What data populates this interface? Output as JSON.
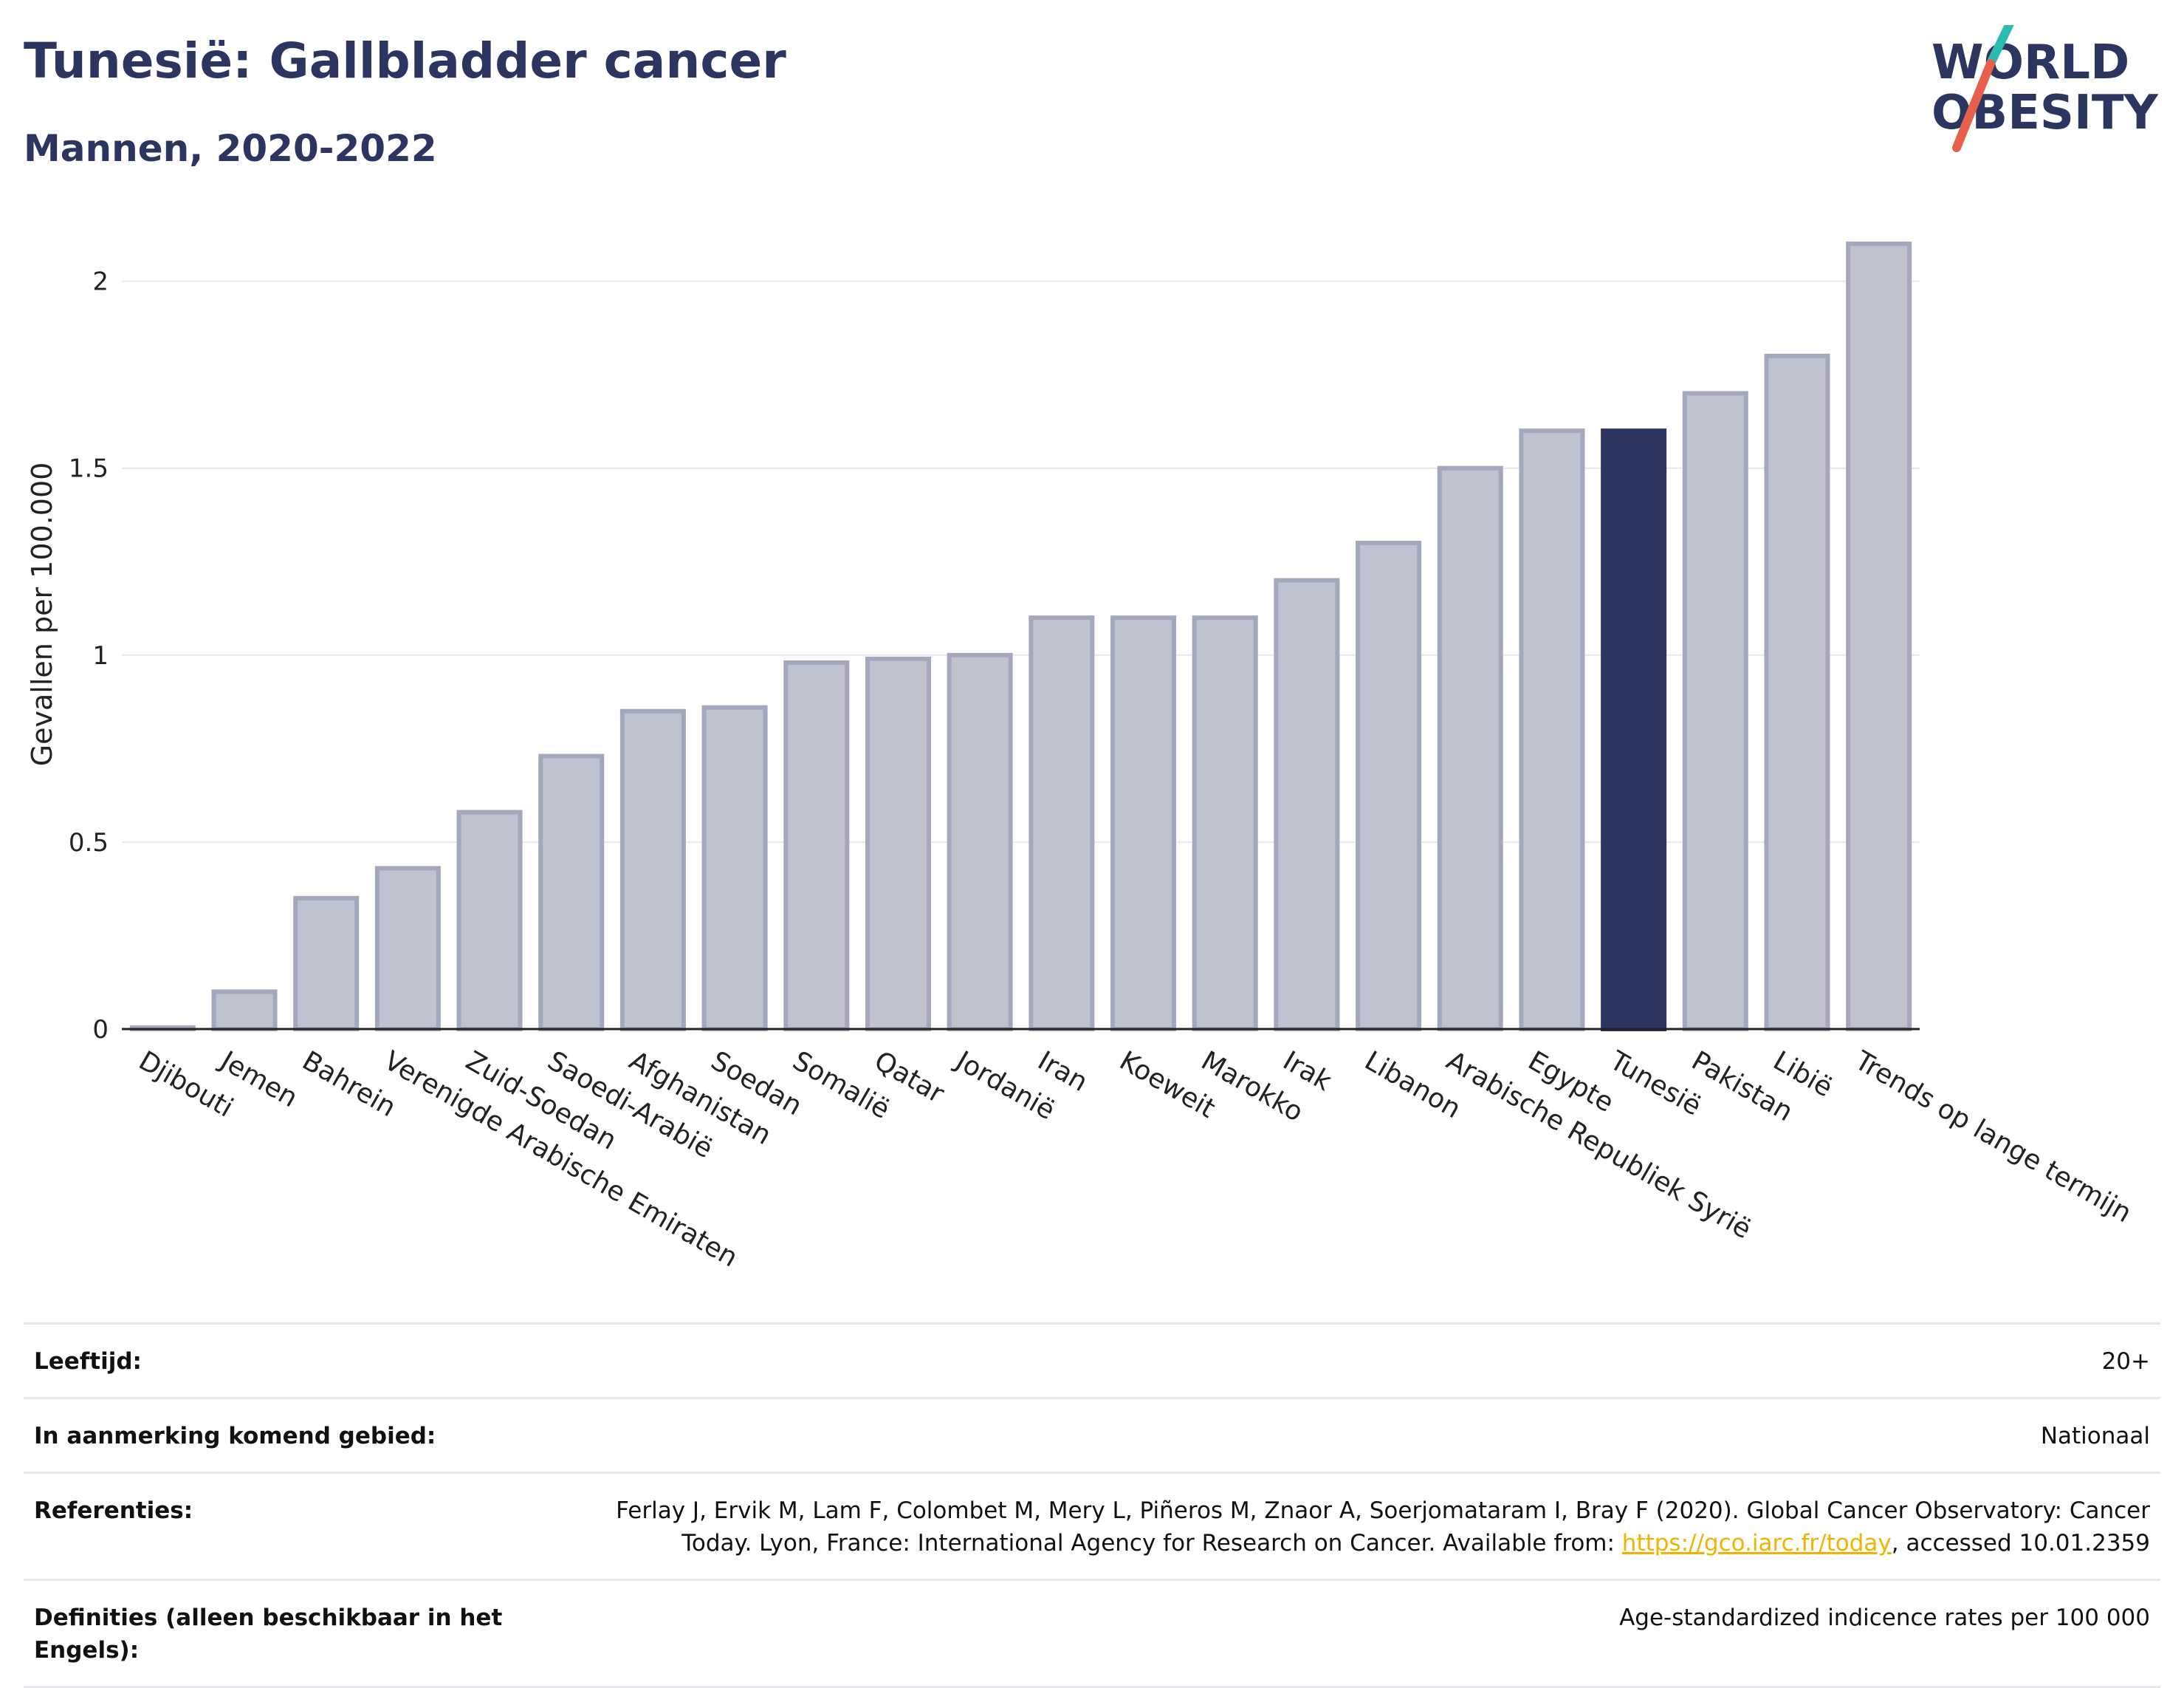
{
  "header": {
    "title": "Tunesië: Gallbladder cancer",
    "subtitle": "Mannen, 2020-2022"
  },
  "logo": {
    "line1": "WORLD",
    "line2": "OBESITY",
    "accent_colors": [
      "#2bbbb0",
      "#e8604c"
    ],
    "text_color": "#2b3560"
  },
  "chart_data": {
    "type": "bar",
    "ylabel": "Gevallen per 100.000",
    "xlabel": "",
    "ylim": [
      0,
      2.1
    ],
    "yticks": [
      0,
      0.5,
      1,
      1.5,
      2
    ],
    "ytick_labels": [
      "0",
      "0.5",
      "1",
      "1.5",
      "2"
    ],
    "grid": true,
    "highlight": "Tunesië",
    "colors": {
      "default": "#bfc2cf",
      "default_border": "#a3a8bd",
      "highlight": "#2b3560"
    },
    "categories": [
      "Djibouti",
      "Jemen",
      "Bahrein",
      "Verenigde Arabische Emiraten",
      "Zuid-Soedan",
      "Saoedi-Arabië",
      "Afghanistan",
      "Soedan",
      "Somalië",
      "Qatar",
      "Jordanië",
      "Iran",
      "Koeweit",
      "Marokko",
      "Irak",
      "Libanon",
      "Arabische Republiek Syrië",
      "Egypte",
      "Tunesië",
      "Pakistan",
      "Libië",
      "Trends op lange termijn"
    ],
    "values": [
      0.0,
      0.1,
      0.35,
      0.43,
      0.58,
      0.73,
      0.85,
      0.86,
      0.98,
      0.99,
      1.0,
      1.1,
      1.1,
      1.1,
      1.2,
      1.3,
      1.5,
      1.6,
      1.6,
      1.7,
      1.8,
      2.1
    ]
  },
  "meta": [
    {
      "label": "Leeftijd:",
      "value": "20+"
    },
    {
      "label": "In aanmerking komend gebied:",
      "value": "Nationaal"
    },
    {
      "label": "Referenties:",
      "value_pre": "Ferlay J, Ervik M, Lam F, Colombet M, Mery L, Piñeros M, Znaor A, Soerjomataram I, Bray F (2020). Global Cancer Observatory: Cancer Today. Lyon, France: International Agency for Research on Cancer. Available from: ",
      "link": "https://gco.iarc.fr/today",
      "value_post": ", accessed 10.01.2359"
    },
    {
      "label": "Definities (alleen beschikbaar in het Engels):",
      "value": "Age-standardized indicence rates per 100 000"
    }
  ]
}
